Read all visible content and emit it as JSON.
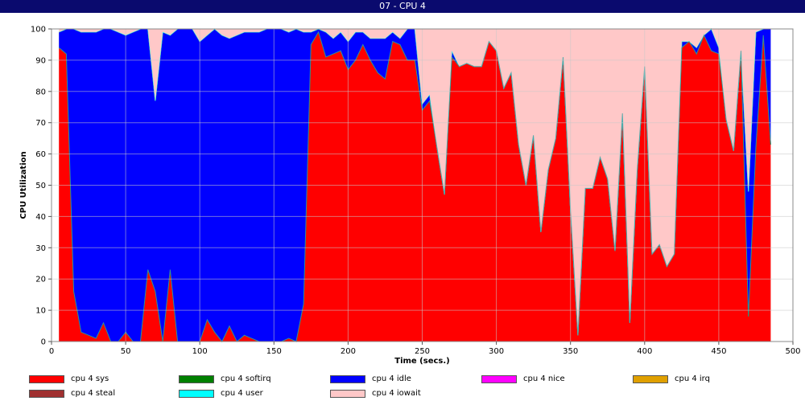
{
  "window": {
    "title": "07 - CPU 4"
  },
  "chart_data": {
    "type": "area",
    "stacked": true,
    "title": "07 - CPU 4",
    "xlabel": "Time (secs.)",
    "ylabel": "CPU Utilization",
    "xlim": [
      0,
      500
    ],
    "ylim": [
      0,
      100
    ],
    "xticks": [
      0,
      50,
      100,
      150,
      200,
      250,
      300,
      350,
      400,
      450,
      500
    ],
    "yticks": [
      0,
      10,
      20,
      30,
      40,
      50,
      60,
      70,
      80,
      90,
      100
    ],
    "grid": true,
    "legend_position": "bottom",
    "x": [
      5,
      10,
      15,
      20,
      25,
      30,
      35,
      40,
      45,
      50,
      55,
      60,
      65,
      70,
      75,
      80,
      85,
      90,
      95,
      100,
      105,
      110,
      115,
      120,
      125,
      130,
      135,
      140,
      145,
      150,
      155,
      160,
      165,
      170,
      175,
      180,
      185,
      190,
      195,
      200,
      205,
      210,
      215,
      220,
      225,
      230,
      235,
      240,
      245,
      250,
      255,
      260,
      265,
      270,
      275,
      280,
      285,
      290,
      295,
      300,
      305,
      310,
      315,
      320,
      325,
      330,
      335,
      340,
      345,
      350,
      355,
      360,
      365,
      370,
      375,
      380,
      385,
      390,
      395,
      400,
      405,
      410,
      415,
      420,
      425,
      430,
      435,
      440,
      445,
      450,
      455,
      460,
      465,
      470,
      475,
      480,
      485
    ],
    "series": [
      {
        "name": "cpu 4 sys",
        "color": "#ff0000",
        "values": [
          94,
          92,
          16,
          3,
          2,
          1,
          6,
          0,
          0,
          3,
          0,
          0,
          23,
          16,
          0,
          23,
          0,
          0,
          0,
          0,
          7,
          3,
          0,
          5,
          0,
          2,
          1,
          0,
          0,
          0,
          0,
          1,
          0,
          12,
          95,
          99,
          91,
          92,
          93,
          87,
          90,
          95,
          90,
          86,
          84,
          96,
          95,
          90,
          90,
          74,
          77,
          62,
          47,
          91,
          88,
          89,
          88,
          88,
          96,
          93,
          81,
          86,
          63,
          50,
          66,
          35,
          55,
          65,
          91,
          42,
          2,
          49,
          49,
          59,
          52,
          29,
          73,
          6,
          55,
          88,
          28,
          31,
          24,
          28,
          94,
          96,
          92,
          98,
          93,
          92,
          71,
          61,
          93,
          8,
          62,
          98,
          63
        ]
      },
      {
        "name": "cpu 4 softirq",
        "color": "#008000",
        "values": [
          0,
          0,
          0,
          0,
          0,
          0,
          0,
          0,
          0,
          0,
          0,
          0,
          0,
          0,
          0,
          0,
          0,
          0,
          0,
          0,
          0,
          0,
          0,
          0,
          0,
          0,
          0,
          0,
          0,
          0,
          0,
          0,
          0,
          0,
          0,
          0,
          0,
          0,
          0,
          0,
          0,
          0,
          0,
          0,
          0,
          0,
          0,
          0,
          0,
          0,
          0,
          0,
          0,
          0,
          0,
          0,
          0,
          0,
          0,
          0,
          0,
          0,
          0,
          0,
          0,
          0,
          0,
          0,
          0,
          0,
          0,
          0,
          0,
          0,
          0,
          0,
          0,
          0,
          0,
          0,
          0,
          0,
          0,
          0,
          0,
          0,
          0,
          0,
          0,
          0,
          0,
          0,
          0,
          0,
          0,
          0,
          0
        ]
      },
      {
        "name": "cpu 4 idle",
        "color": "#0000ff",
        "values": [
          5,
          8,
          84,
          96,
          97,
          98,
          94,
          100,
          99,
          95,
          99,
          100,
          77,
          61,
          99,
          75,
          100,
          100,
          100,
          96,
          91,
          97,
          98,
          92,
          98,
          97,
          98,
          99,
          100,
          100,
          100,
          98,
          100,
          87,
          4,
          1,
          8,
          5,
          6,
          9,
          9,
          4,
          7,
          11,
          13,
          3,
          2,
          10,
          10,
          2,
          2,
          0,
          0,
          2,
          0,
          0,
          0,
          0,
          0,
          0,
          0,
          0,
          0,
          0,
          0,
          0,
          0,
          0,
          0,
          0,
          0,
          0,
          0,
          0,
          0,
          0,
          0,
          0,
          0,
          0,
          0,
          0,
          0,
          0,
          2,
          0,
          2,
          0,
          7,
          2,
          0,
          0,
          0,
          40,
          37,
          2,
          37
        ]
      },
      {
        "name": "cpu 4 nice",
        "color": "#ff00ff",
        "values": [
          0,
          0,
          0,
          0,
          0,
          0,
          0,
          0,
          0,
          0,
          0,
          0,
          0,
          0,
          0,
          0,
          0,
          0,
          0,
          0,
          0,
          0,
          0,
          0,
          0,
          0,
          0,
          0,
          0,
          0,
          0,
          0,
          0,
          0,
          0,
          0,
          0,
          0,
          0,
          0,
          0,
          0,
          0,
          0,
          0,
          0,
          0,
          0,
          0,
          0,
          0,
          0,
          0,
          0,
          0,
          0,
          0,
          0,
          0,
          0,
          0,
          0,
          0,
          0,
          0,
          0,
          0,
          0,
          0,
          0,
          0,
          0,
          0,
          0,
          0,
          0,
          0,
          0,
          0,
          0,
          0,
          0,
          0,
          0,
          0,
          0,
          0,
          0,
          0,
          0,
          0,
          0,
          0,
          0,
          0,
          0,
          0
        ]
      },
      {
        "name": "cpu 4 irq",
        "color": "#e0a000",
        "values": [
          0,
          0,
          0,
          0,
          0,
          0,
          0,
          0,
          0,
          0,
          0,
          0,
          0,
          0,
          0,
          0,
          0,
          0,
          0,
          0,
          0,
          0,
          0,
          0,
          0,
          0,
          0,
          0,
          0,
          0,
          0,
          0,
          0,
          0,
          0,
          0,
          0,
          0,
          0,
          0,
          0,
          0,
          0,
          0,
          0,
          0,
          0,
          0,
          0,
          0,
          0,
          0,
          0,
          0,
          0,
          0,
          0,
          0,
          0,
          0,
          0,
          0,
          0,
          0,
          0,
          0,
          0,
          0,
          0,
          0,
          0,
          0,
          0,
          0,
          0,
          0,
          0,
          0,
          0,
          0,
          0,
          0,
          0,
          0,
          0,
          0,
          0,
          0,
          0,
          0,
          0,
          0,
          0,
          0,
          0,
          0,
          0
        ]
      },
      {
        "name": "cpu 4 steal",
        "color": "#a03030",
        "values": [
          0,
          0,
          0,
          0,
          0,
          0,
          0,
          0,
          0,
          0,
          0,
          0,
          0,
          0,
          0,
          0,
          0,
          0,
          0,
          0,
          0,
          0,
          0,
          0,
          0,
          0,
          0,
          0,
          0,
          0,
          0,
          0,
          0,
          0,
          0,
          0,
          0,
          0,
          0,
          0,
          0,
          0,
          0,
          0,
          0,
          0,
          0,
          0,
          0,
          0,
          0,
          0,
          0,
          0,
          0,
          0,
          0,
          0,
          0,
          0,
          0,
          0,
          0,
          0,
          0,
          0,
          0,
          0,
          0,
          0,
          0,
          0,
          0,
          0,
          0,
          0,
          0,
          0,
          0,
          0,
          0,
          0,
          0,
          0,
          0,
          0,
          0,
          0,
          0,
          0,
          0,
          0,
          0,
          0,
          0,
          0,
          0
        ]
      },
      {
        "name": "cpu 4 user",
        "color": "#00ffff",
        "values": [
          0,
          0,
          0,
          0,
          0,
          0,
          0,
          0,
          0,
          0,
          0,
          0,
          0,
          0,
          0,
          0,
          0,
          0,
          0,
          0,
          0,
          0,
          0,
          0,
          0,
          0,
          0,
          0,
          0,
          0,
          0,
          0,
          0,
          0,
          0,
          0,
          0,
          0,
          0,
          0,
          0,
          0,
          0,
          0,
          0,
          0,
          0,
          0,
          0,
          0,
          0,
          0,
          0,
          0,
          0,
          0,
          0,
          0,
          0,
          0,
          0,
          0,
          0,
          0,
          0,
          0,
          0,
          0,
          0,
          0,
          0,
          0,
          0,
          0,
          0,
          0,
          0,
          0,
          0,
          0,
          0,
          0,
          0,
          0,
          0,
          0,
          0,
          0,
          0,
          0,
          0,
          0,
          0,
          0,
          0,
          0,
          0
        ]
      },
      {
        "name": "cpu 4 iowait",
        "color": "#ffc8c8",
        "values": [
          1,
          0,
          0,
          1,
          1,
          1,
          0,
          0,
          1,
          2,
          1,
          0,
          0,
          23,
          1,
          2,
          0,
          0,
          0,
          4,
          2,
          0,
          2,
          3,
          2,
          1,
          1,
          1,
          0,
          0,
          0,
          1,
          0,
          1,
          1,
          0,
          1,
          3,
          1,
          4,
          1,
          1,
          3,
          3,
          3,
          1,
          3,
          0,
          0,
          24,
          21,
          38,
          53,
          7,
          12,
          11,
          12,
          12,
          4,
          7,
          19,
          14,
          37,
          50,
          34,
          65,
          45,
          35,
          9,
          58,
          98,
          51,
          51,
          41,
          48,
          71,
          27,
          94,
          45,
          12,
          72,
          69,
          76,
          72,
          4,
          4,
          6,
          2,
          0,
          6,
          29,
          39,
          7,
          52,
          1,
          0,
          0
        ]
      }
    ]
  }
}
